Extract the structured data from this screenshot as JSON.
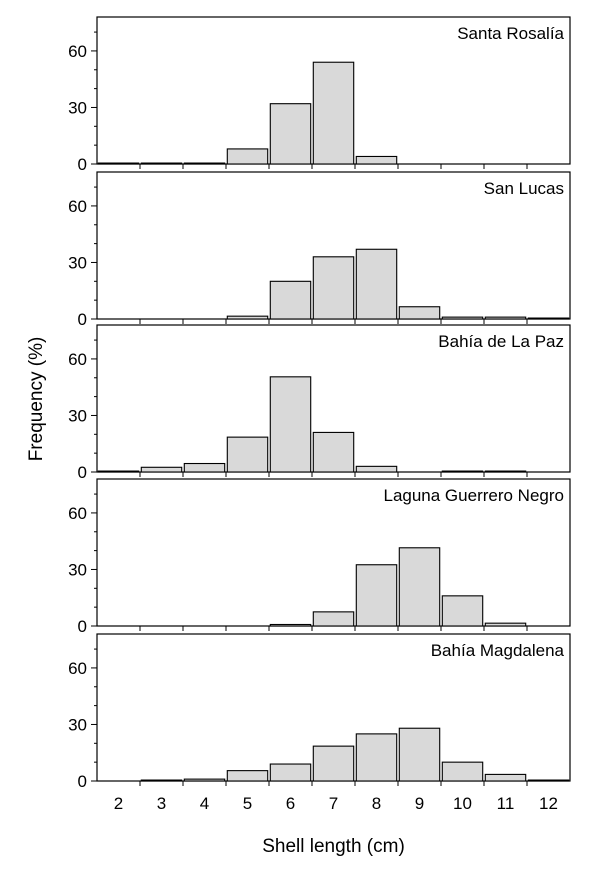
{
  "chart_data": {
    "type": "bar",
    "ylabel": "Frequency (%)",
    "xlabel": "Shell length (cm)",
    "x_ticks": [
      "2",
      "3",
      "4",
      "5",
      "6",
      "7",
      "8",
      "9",
      "10",
      "11",
      "12"
    ],
    "y_ticks": [
      0,
      30,
      60
    ],
    "ylim": [
      0,
      78
    ],
    "panels": [
      {
        "title": "Santa Rosalía",
        "categories": [
          2,
          3,
          4,
          5,
          6,
          7,
          8,
          9,
          10,
          11,
          12
        ],
        "values": [
          0.5,
          0.5,
          0.5,
          8,
          32,
          54,
          4,
          0,
          0,
          0,
          0
        ]
      },
      {
        "title": "San Lucas",
        "categories": [
          2,
          3,
          4,
          5,
          6,
          7,
          8,
          9,
          10,
          11,
          12
        ],
        "values": [
          0,
          0,
          0,
          1.5,
          20,
          33,
          37,
          6.5,
          1,
          1,
          0.5
        ]
      },
      {
        "title": "Bahía de La Paz",
        "categories": [
          2,
          3,
          4,
          5,
          6,
          7,
          8,
          9,
          10,
          11,
          12
        ],
        "values": [
          0.5,
          2.5,
          4.5,
          18.5,
          50.5,
          21,
          3,
          0,
          0.5,
          0.5,
          0
        ]
      },
      {
        "title": "Laguna Guerrero Negro",
        "categories": [
          2,
          3,
          4,
          5,
          6,
          7,
          8,
          9,
          10,
          11,
          12
        ],
        "values": [
          0,
          0,
          0,
          0,
          0.8,
          7.5,
          32.5,
          41.5,
          16,
          1.5,
          0
        ]
      },
      {
        "title": "Bahía Magdalena",
        "categories": [
          2,
          3,
          4,
          5,
          6,
          7,
          8,
          9,
          10,
          11,
          12
        ],
        "values": [
          0,
          0.5,
          1,
          5.5,
          9,
          18.5,
          25,
          28,
          10,
          3.5,
          0.5
        ]
      }
    ]
  }
}
